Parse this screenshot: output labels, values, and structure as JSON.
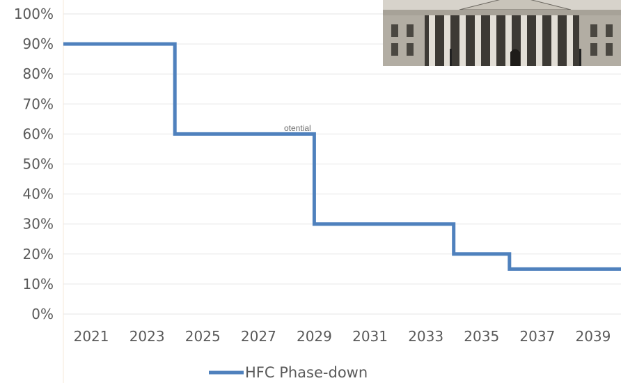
{
  "chart_data": {
    "type": "line",
    "step": true,
    "title": "",
    "xlabel": "",
    "ylabel": "",
    "xlim": [
      2020,
      2040
    ],
    "ylim": [
      0,
      100
    ],
    "y_ticks": [
      "0%",
      "10%",
      "20%",
      "30%",
      "40%",
      "50%",
      "60%",
      "70%",
      "80%",
      "90%",
      "100%"
    ],
    "x_ticks": [
      "2021",
      "2023",
      "2025",
      "2027",
      "2029",
      "2031",
      "2033",
      "2035",
      "2037",
      "2039"
    ],
    "grid": true,
    "legend_position": "bottom",
    "series": [
      {
        "name": "HFC Phase-down",
        "color": "#4F81BD",
        "points": [
          {
            "x": 2020,
            "y": 90
          },
          {
            "x": 2024,
            "y": 90
          },
          {
            "x": 2024,
            "y": 60
          },
          {
            "x": 2029,
            "y": 60
          },
          {
            "x": 2029,
            "y": 30
          },
          {
            "x": 2034,
            "y": 30
          },
          {
            "x": 2034,
            "y": 20
          },
          {
            "x": 2036,
            "y": 20
          },
          {
            "x": 2036,
            "y": 15
          },
          {
            "x": 2040,
            "y": 15
          }
        ]
      }
    ],
    "annotation": "otential"
  },
  "photo": {
    "subject": "capitol-building-photo",
    "colors": {
      "sky": "#cfcfcf",
      "facade": "#bdb8ae",
      "shadow": "#3a3834",
      "column": "#e6e3dc"
    }
  }
}
